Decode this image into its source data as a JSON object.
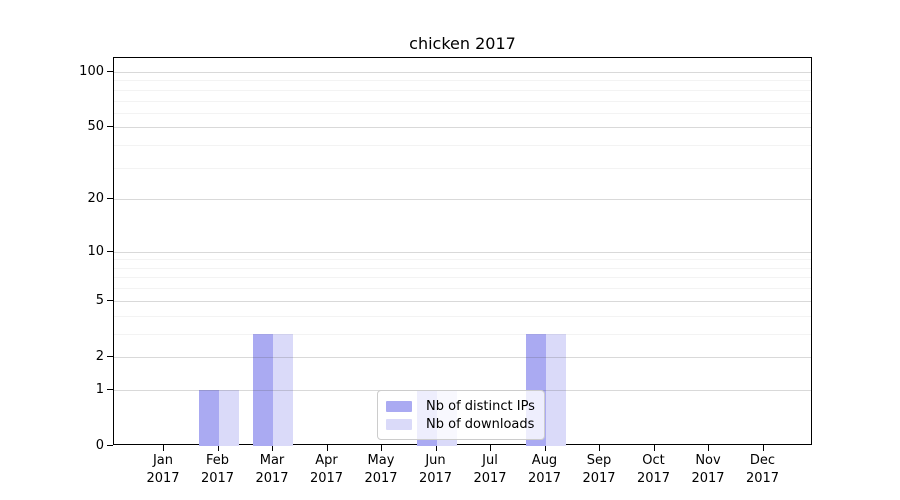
{
  "chart_data": {
    "type": "bar",
    "title": "chicken 2017",
    "x": {
      "categories": [
        "Jan",
        "Feb",
        "Mar",
        "Apr",
        "May",
        "Jun",
        "Jul",
        "Aug",
        "Sep",
        "Oct",
        "Nov",
        "Dec"
      ],
      "year": "2017"
    },
    "series": [
      {
        "name": "Nb of distinct IPs",
        "color": "#aaaaf2",
        "values": [
          0,
          1,
          3,
          0,
          0,
          1,
          0,
          3,
          0,
          0,
          0,
          0
        ]
      },
      {
        "name": "Nb of downloads",
        "color": "#dadaf9",
        "values": [
          0,
          1,
          3,
          0,
          0,
          1,
          0,
          3,
          0,
          0,
          0,
          0
        ]
      }
    ],
    "y": {
      "scale": "log1p",
      "ticks": [
        0,
        1,
        2,
        5,
        10,
        20,
        50,
        100
      ],
      "minor_gridlines": [
        3,
        4,
        6,
        7,
        8,
        9,
        30,
        40,
        60,
        70,
        80,
        90
      ],
      "ylim": [
        0,
        119
      ]
    },
    "legend": {
      "position": "lower center",
      "entries": [
        "Nb of distinct IPs",
        "Nb of downloads"
      ]
    },
    "grid": "horizontal-only"
  },
  "colors": {
    "bar_distinct_ips": "#aaaaf2",
    "bar_downloads": "#dadaf9",
    "axis": "#000000",
    "grid_major": "#d9d9d9",
    "grid_minor": "#f0f0f0",
    "legend_border": "#cccccc",
    "background": "#ffffff"
  }
}
